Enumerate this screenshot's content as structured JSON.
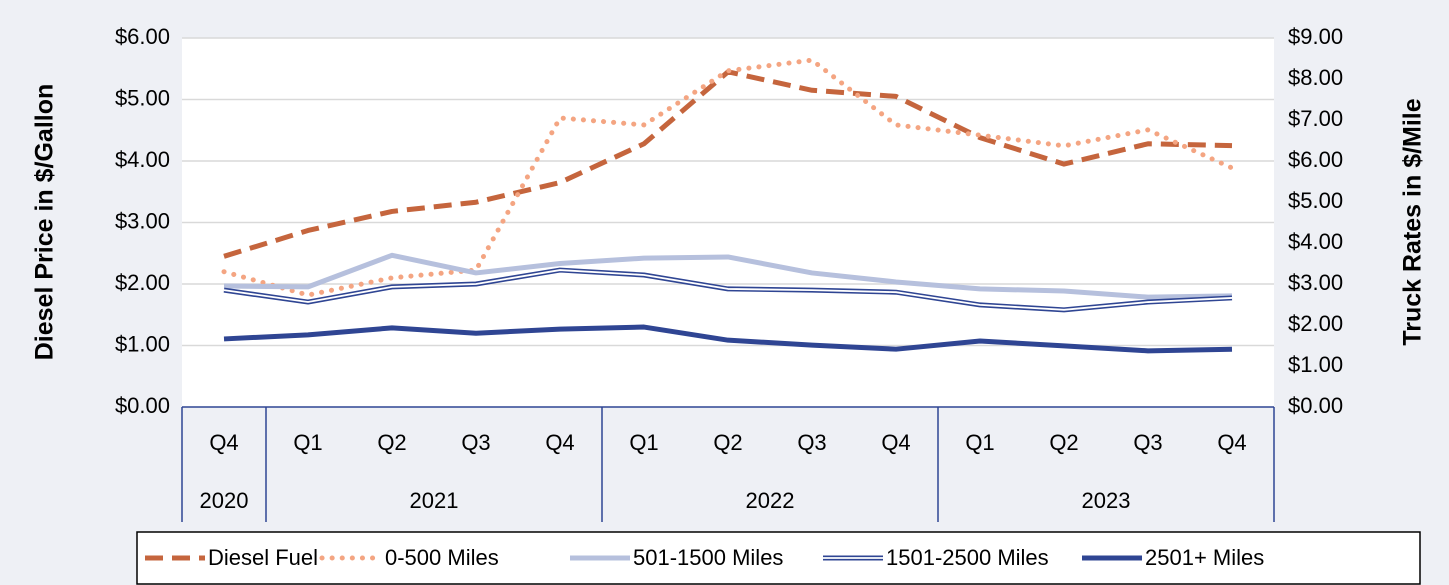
{
  "chart_data": {
    "type": "line",
    "ylabel": "Diesel Price in $/Gallon",
    "y2label": "Truck Rates in $/Mile",
    "categories": [
      "Q4",
      "Q1",
      "Q2",
      "Q3",
      "Q4",
      "Q1",
      "Q2",
      "Q3",
      "Q4",
      "Q1",
      "Q2",
      "Q3",
      "Q4"
    ],
    "category_groups": [
      {
        "label": "2020",
        "count": 1
      },
      {
        "label": "2021",
        "count": 4
      },
      {
        "label": "2022",
        "count": 4
      },
      {
        "label": "2023",
        "count": 4
      }
    ],
    "ylim": [
      0,
      6
    ],
    "yticks": [
      {
        "value": 0,
        "label": "$0.00"
      },
      {
        "value": 1,
        "label": "$1.00"
      },
      {
        "value": 2,
        "label": "$2.00"
      },
      {
        "value": 3,
        "label": "$3.00"
      },
      {
        "value": 4,
        "label": "$4.00"
      },
      {
        "value": 5,
        "label": "$5.00"
      },
      {
        "value": 6,
        "label": "$6.00"
      }
    ],
    "y2lim": [
      0,
      9
    ],
    "y2ticks": [
      {
        "value": 0,
        "label": "$0.00"
      },
      {
        "value": 1,
        "label": "$1.00"
      },
      {
        "value": 2,
        "label": "$2.00"
      },
      {
        "value": 3,
        "label": "$3.00"
      },
      {
        "value": 4,
        "label": "$4.00"
      },
      {
        "value": 5,
        "label": "$5.00"
      },
      {
        "value": 6,
        "label": "$6.00"
      },
      {
        "value": 7,
        "label": "$7.00"
      },
      {
        "value": 8,
        "label": "$8.00"
      },
      {
        "value": 9,
        "label": "$9.00"
      }
    ],
    "grid": true,
    "legend": "bottom",
    "series": [
      {
        "name": "Diesel Fuel",
        "color": "#c5653d",
        "style": "dashed",
        "axis": "y",
        "values": [
          2.45,
          2.87,
          3.18,
          3.33,
          3.65,
          4.28,
          5.45,
          5.15,
          5.05,
          4.38,
          3.95,
          4.28,
          4.25
        ]
      },
      {
        "name": "0-500 Miles",
        "color": "#f4a582",
        "style": "dotted",
        "axis": "y2",
        "values": [
          3.3,
          2.73,
          3.15,
          3.34,
          7.05,
          6.88,
          8.2,
          8.46,
          6.88,
          6.63,
          6.37,
          6.76,
          5.83
        ]
      },
      {
        "name": "501-1500 Miles",
        "color": "#b6c0dd",
        "style": "solid",
        "axis": "y2",
        "values": [
          2.95,
          2.93,
          3.7,
          3.27,
          3.5,
          3.63,
          3.66,
          3.27,
          3.05,
          2.88,
          2.83,
          2.68,
          2.71
        ]
      },
      {
        "name": "1501-2500 Miles",
        "color": "#2f4593",
        "style": "double",
        "axis": "y2",
        "values": [
          2.85,
          2.56,
          2.93,
          3.0,
          3.34,
          3.22,
          2.88,
          2.85,
          2.8,
          2.49,
          2.37,
          2.56,
          2.66
        ]
      },
      {
        "name": "2501+ Miles",
        "color": "#2f4593",
        "style": "solid",
        "axis": "y2",
        "values": [
          1.66,
          1.76,
          1.93,
          1.8,
          1.9,
          1.95,
          1.63,
          1.51,
          1.41,
          1.61,
          1.49,
          1.37,
          1.41
        ]
      }
    ]
  }
}
